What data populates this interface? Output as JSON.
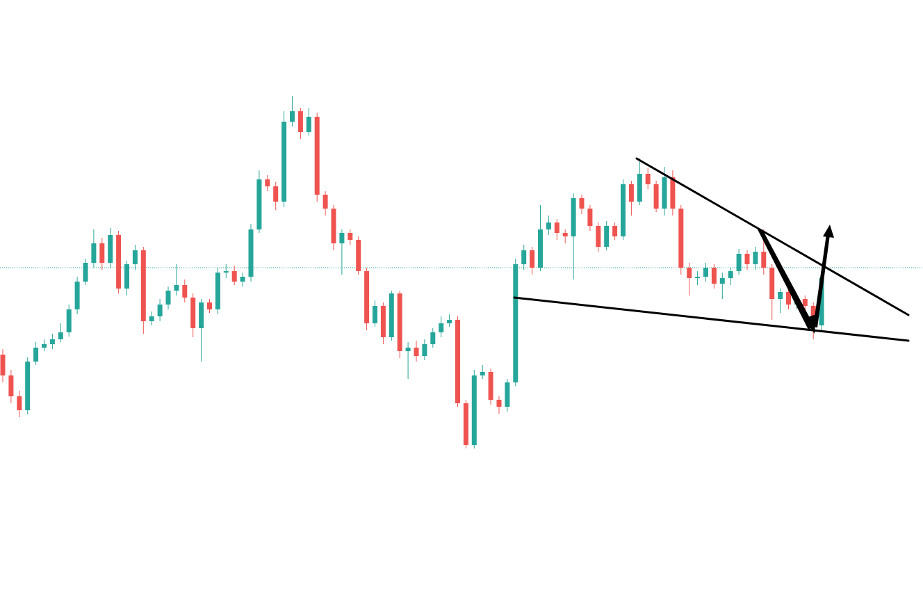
{
  "chart_data": {
    "type": "candlestick",
    "open": [
      340,
      310,
      280,
      260,
      330,
      350,
      355,
      362,
      372,
      405,
      445,
      472,
      500,
      472,
      512,
      435,
      470,
      490,
      388,
      395,
      412,
      432,
      440,
      422,
      378,
      415,
      405,
      458,
      460,
      445,
      452,
      520,
      592,
      582,
      560,
      675,
      690,
      660,
      682,
      570,
      550,
      500,
      515,
      505,
      460,
      385,
      410,
      365,
      428,
      345,
      350,
      338,
      355,
      372,
      385,
      390,
      270,
      210,
      310,
      315,
      275,
      265,
      300,
      470,
      490,
      465,
      520,
      530,
      515,
      510,
      565,
      550,
      525,
      495,
      525,
      510,
      585,
      560,
      600,
      585,
      550,
      595,
      550,
      465,
      450,
      452,
      465,
      442,
      450,
      460,
      485,
      470,
      488,
      465,
      420,
      430,
      412,
      420,
      410,
      382
    ],
    "high": [
      348,
      318,
      288,
      336,
      358,
      362,
      370,
      385,
      412,
      452,
      478,
      520,
      508,
      522,
      518,
      475,
      498,
      495,
      402,
      420,
      438,
      470,
      448,
      428,
      420,
      420,
      465,
      470,
      468,
      458,
      528,
      605,
      598,
      588,
      690,
      712,
      695,
      695,
      688,
      575,
      555,
      520,
      520,
      510,
      465,
      418,
      415,
      432,
      432,
      358,
      360,
      362,
      378,
      395,
      398,
      395,
      275,
      318,
      325,
      320,
      280,
      305,
      478,
      498,
      495,
      555,
      540,
      535,
      520,
      572,
      570,
      555,
      530,
      532,
      530,
      592,
      590,
      622,
      608,
      590,
      610,
      605,
      555,
      472,
      460,
      472,
      470,
      458,
      465,
      492,
      490,
      495,
      520,
      470,
      435,
      435,
      428,
      425,
      415,
      455
    ],
    "low": [
      300,
      270,
      250,
      254,
      325,
      345,
      348,
      358,
      366,
      398,
      440,
      465,
      462,
      465,
      428,
      425,
      462,
      370,
      382,
      388,
      405,
      425,
      415,
      365,
      330,
      400,
      398,
      450,
      440,
      438,
      445,
      515,
      575,
      548,
      552,
      668,
      650,
      655,
      560,
      540,
      490,
      455,
      498,
      455,
      375,
      380,
      355,
      360,
      335,
      305,
      330,
      332,
      350,
      365,
      380,
      265,
      205,
      205,
      305,
      268,
      255,
      258,
      295,
      462,
      455,
      460,
      512,
      505,
      500,
      448,
      542,
      518,
      488,
      490,
      505,
      505,
      540,
      555,
      578,
      545,
      540,
      540,
      455,
      425,
      440,
      445,
      435,
      420,
      440,
      455,
      462,
      462,
      455,
      390,
      400,
      405,
      405,
      400,
      362,
      375
    ],
    "close": [
      310,
      280,
      260,
      330,
      350,
      355,
      362,
      372,
      405,
      445,
      472,
      500,
      472,
      512,
      435,
      470,
      490,
      388,
      395,
      412,
      432,
      440,
      422,
      378,
      415,
      405,
      458,
      460,
      445,
      452,
      520,
      592,
      582,
      560,
      675,
      690,
      660,
      682,
      570,
      550,
      500,
      515,
      505,
      460,
      385,
      410,
      365,
      428,
      345,
      350,
      338,
      355,
      372,
      385,
      390,
      270,
      210,
      310,
      315,
      275,
      265,
      300,
      470,
      490,
      465,
      520,
      530,
      515,
      510,
      565,
      550,
      525,
      495,
      525,
      510,
      585,
      560,
      600,
      585,
      550,
      595,
      550,
      465,
      450,
      452,
      465,
      442,
      450,
      460,
      485,
      470,
      488,
      465,
      420,
      430,
      412,
      420,
      410,
      382,
      450
    ],
    "up_color": "#26a69a",
    "down_color": "#ef5350",
    "price_line": 465,
    "price_line_color": "#26a69a",
    "ylim": [
      0,
      850
    ]
  }
}
